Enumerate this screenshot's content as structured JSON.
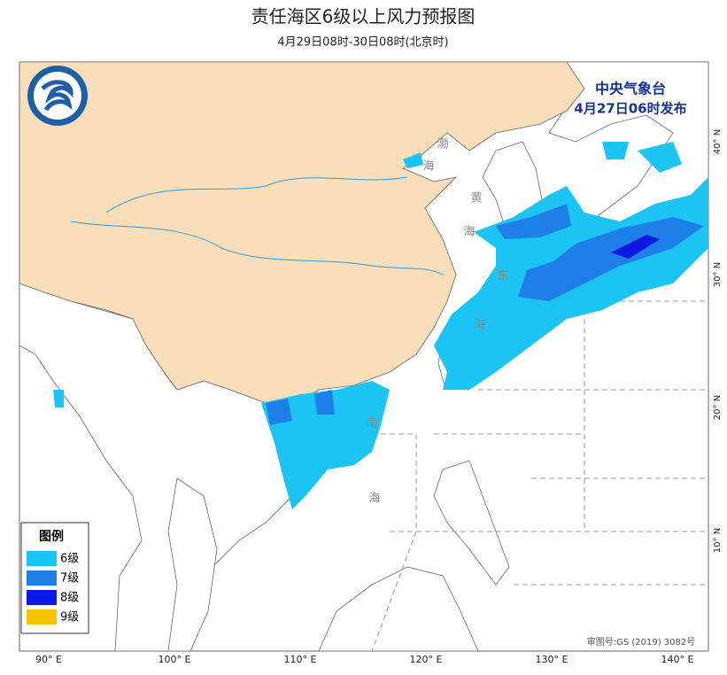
{
  "header": {
    "title": "责任海区6级以上风力预报图",
    "subtitle": "4月29日08时-30日08时(北京时)"
  },
  "stamp": {
    "agency": "中央气象台",
    "issued": "4月27日06时发布"
  },
  "sea_labels": [
    "渤",
    "海",
    "黄",
    "海",
    "东",
    "海",
    "南",
    "海"
  ],
  "lon_labels": [
    "90° E",
    "100° E",
    "110° E",
    "120° E",
    "130° E",
    "140° E"
  ],
  "lat_labels": [
    "40° N",
    "30° N",
    "20° N",
    "10° N"
  ],
  "legend": {
    "title": "图例",
    "items": [
      {
        "label": "6级",
        "color": "#1cc4f4"
      },
      {
        "label": "7级",
        "color": "#1e7fe8"
      },
      {
        "label": "8级",
        "color": "#0c18e4"
      },
      {
        "label": "9级",
        "color": "#f5c400"
      }
    ]
  },
  "map_number": "审图号:GS (2019) 3082号"
}
